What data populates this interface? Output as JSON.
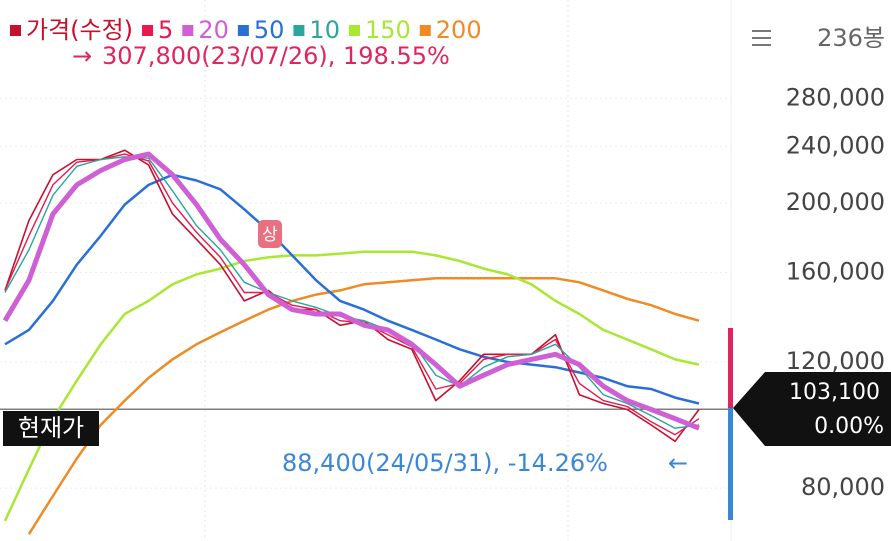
{
  "chart_data": {
    "type": "line",
    "log_y": true,
    "grid": true,
    "x": [
      0,
      8,
      16,
      24,
      32,
      40,
      48,
      56,
      64,
      72,
      80,
      88,
      96,
      104,
      112,
      120,
      128,
      136,
      144,
      152,
      160,
      168,
      176,
      184,
      192,
      200,
      208,
      216,
      224,
      232
    ],
    "xlim": [
      0,
      236
    ],
    "ylim": [
      67500,
      384000
    ],
    "yticks": [
      {
        "value": 80000,
        "label": "80,000"
      },
      {
        "value": 120000,
        "label": "120,000"
      },
      {
        "value": 160000,
        "label": "160,000"
      },
      {
        "value": 200000,
        "label": "200,000"
      },
      {
        "value": 240000,
        "label": "240,000"
      },
      {
        "value": 280000,
        "label": "280,000"
      }
    ],
    "series": [
      {
        "name": "가격(수정)",
        "color": "#c8102e",
        "values": [
          151000,
          189000,
          219000,
          230000,
          230000,
          237000,
          226000,
          193000,
          178000,
          164000,
          146000,
          151000,
          142000,
          142000,
          135000,
          137000,
          129000,
          125000,
          106000,
          113000,
          123000,
          123000,
          123000,
          131000,
          108000,
          105000,
          103000,
          98000,
          93000,
          103000
        ]
      },
      {
        "name": "5",
        "color": "#e8194f",
        "values": [
          151000,
          180000,
          212000,
          228000,
          230000,
          234000,
          229000,
          200000,
          182000,
          168000,
          150000,
          150000,
          144000,
          142000,
          137000,
          136000,
          131000,
          126000,
          110000,
          112000,
          121000,
          123000,
          123000,
          129000,
          112000,
          106000,
          104000,
          99000,
          95000,
          100000
        ]
      },
      {
        "name": "20",
        "color": "#cf5fd4",
        "values": [
          137000,
          156000,
          193000,
          212000,
          222000,
          230000,
          234000,
          219000,
          199000,
          178000,
          164000,
          149000,
          142000,
          140000,
          140000,
          135000,
          133000,
          127000,
          119000,
          111000,
          115000,
          119000,
          121000,
          123000,
          119000,
          111000,
          106000,
          103000,
          100000,
          97000
        ]
      },
      {
        "name": "50",
        "color": "#2a6fd6",
        "values": [
          127000,
          133000,
          146000,
          164000,
          180000,
          199000,
          212000,
          219000,
          215000,
          209000,
          196000,
          183000,
          169000,
          156000,
          146000,
          142000,
          137000,
          133000,
          129000,
          125000,
          122000,
          120000,
          119000,
          118000,
          116000,
          114000,
          111000,
          110000,
          107000,
          105000
        ]
      },
      {
        "name": "10",
        "color": "#2ba69a",
        "values": [
          150000,
          172000,
          205000,
          225000,
          230000,
          232000,
          231000,
          208000,
          186000,
          172000,
          155000,
          150000,
          146000,
          143000,
          139000,
          137000,
          133000,
          128000,
          115000,
          111000,
          118000,
          122000,
          123000,
          127000,
          118000,
          108000,
          105000,
          101000,
          97000,
          98000
        ]
      },
      {
        "name": "150",
        "color": "#a8e832",
        "values": [
          72000,
          85000,
          100000,
          113000,
          127000,
          140000,
          146000,
          154000,
          159000,
          162000,
          166000,
          168000,
          169000,
          169000,
          170000,
          171000,
          171000,
          171000,
          169000,
          166000,
          162000,
          159000,
          154000,
          146000,
          140000,
          133000,
          129000,
          125000,
          121000,
          119000
        ]
      },
      {
        "name": "200",
        "color": "#f08a24",
        "values": [
          null,
          69000,
          78000,
          88000,
          98000,
          106000,
          114000,
          121000,
          127000,
          132000,
          137000,
          142000,
          146000,
          149000,
          151000,
          154000,
          155000,
          156000,
          157000,
          157000,
          157000,
          157000,
          157000,
          157000,
          155000,
          151000,
          147000,
          144000,
          140000,
          137000
        ]
      }
    ],
    "high_annotation": {
      "arrow": "→",
      "text": "307,800(23/07/26), 198.55%"
    },
    "low_annotation": {
      "text": "88,400(24/05/31), -14.26%",
      "arrow": "←"
    },
    "limit_badge": "상",
    "bar_count": "236봉",
    "current": {
      "label": "현재가",
      "price": {
        "value": 103100,
        "label": "103,100"
      },
      "change": "0.00%"
    }
  }
}
